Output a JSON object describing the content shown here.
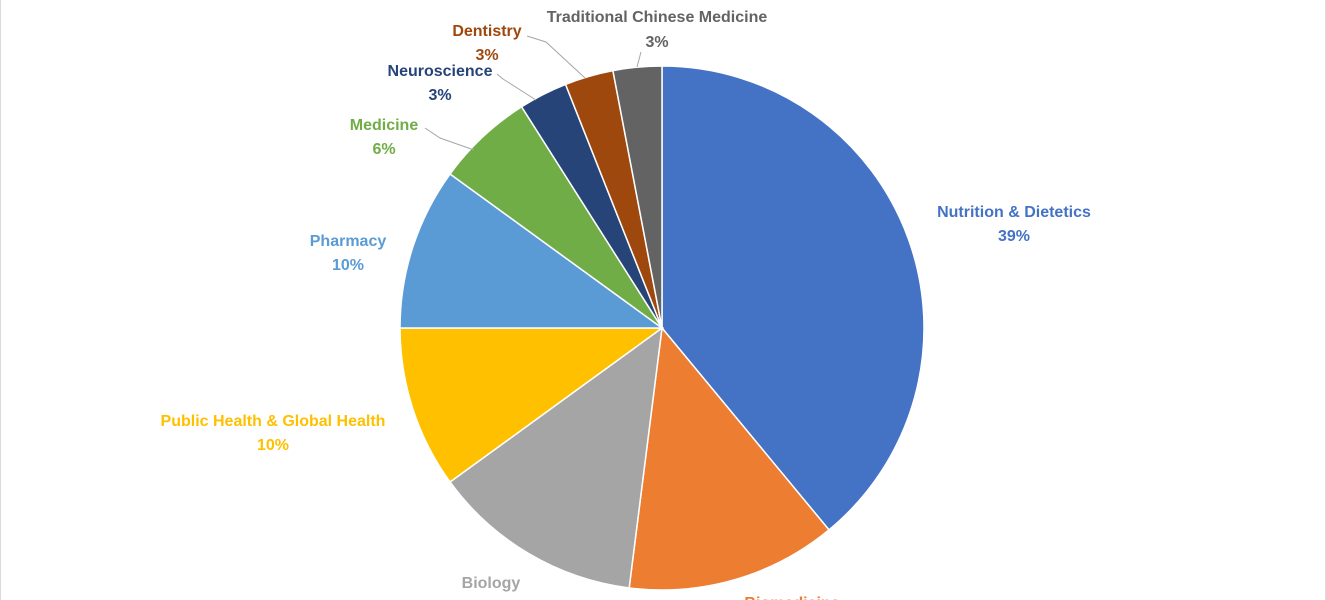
{
  "chart_data": {
    "type": "pie",
    "categories": [
      "Nutrition & Dietetics",
      "Biomedicine",
      "Biology",
      "Public Health & Global Health",
      "Pharmacy",
      "Medicine",
      "Neuroscience",
      "Dentistry",
      "Traditional Chinese Medicine"
    ],
    "values": [
      39,
      13,
      13,
      10,
      10,
      6,
      3,
      3,
      3
    ],
    "value_labels": [
      "39%",
      null,
      null,
      "10%",
      "10%",
      "6%",
      "3%",
      "3%",
      "3%"
    ],
    "colors": [
      "#4472c4",
      "#ed7d31",
      "#a5a5a5",
      "#ffc000",
      "#5b9bd5",
      "#70ad47",
      "#264478",
      "#9e480e",
      "#636363"
    ]
  }
}
